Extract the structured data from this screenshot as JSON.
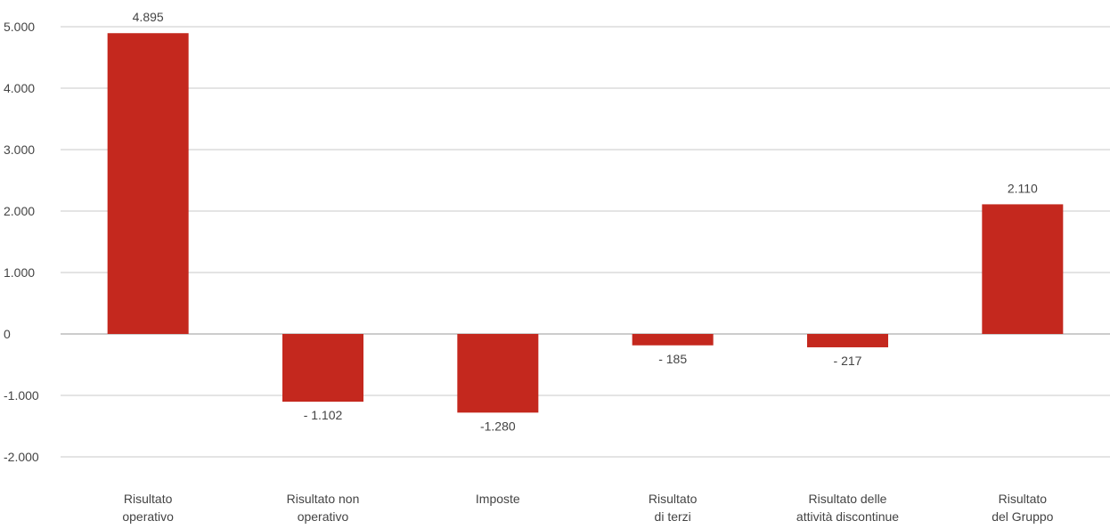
{
  "chart_data": {
    "type": "bar",
    "categories": [
      [
        "Risultato",
        "operativo"
      ],
      [
        "Risultato non",
        "operativo"
      ],
      [
        "Imposte"
      ],
      [
        "Risultato",
        "di terzi"
      ],
      [
        "Risultato delle",
        "attività discontinue"
      ],
      [
        "Risultato",
        "del Gruppo"
      ]
    ],
    "values": [
      4895,
      -1102,
      -1280,
      -185,
      -217,
      2110
    ],
    "data_labels": [
      "4.895",
      "- 1.102",
      "-1.280",
      "- 185",
      "- 217",
      "2.110"
    ],
    "ylim": [
      -2000,
      5000
    ],
    "yticks": [
      5000,
      4000,
      3000,
      2000,
      1000,
      0,
      -1000,
      -2000
    ],
    "ytick_labels": [
      "5.000",
      "4.000",
      "3.000",
      "2.000",
      "1.000",
      "0",
      "-1.000",
      "-2.000"
    ],
    "grid": true,
    "bar_color": "#c4281e",
    "grid_color": "#c8c8c8",
    "zero_line_color": "#9a9a9a",
    "title": "",
    "xlabel": "",
    "ylabel": ""
  }
}
